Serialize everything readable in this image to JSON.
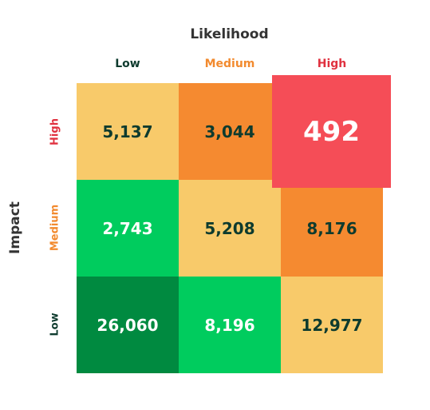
{
  "chart_data": {
    "type": "heatmap",
    "x_title": "Likelihood",
    "y_title": "Impact",
    "x_categories": [
      "Low",
      "Medium",
      "High"
    ],
    "y_categories": [
      "High",
      "Medium",
      "Low"
    ],
    "cells": [
      [
        "5,137",
        "3,044",
        "492"
      ],
      [
        "2,743",
        "5,208",
        "8,176"
      ],
      [
        "26,060",
        "8,196",
        "12,977"
      ]
    ],
    "values": [
      [
        5137,
        3044,
        492
      ],
      [
        2743,
        5208,
        8176
      ],
      [
        26060,
        8196,
        12977
      ]
    ],
    "highlighted_cell": {
      "row": 0,
      "col": 2
    }
  },
  "colors": {
    "low_label": "#0e3b2e",
    "medium_label": "#f28a2e",
    "high_label": "#e0313f",
    "cell_fills": [
      [
        "#f8ca6a",
        "#f58a30",
        "#f54d57"
      ],
      [
        "#00cc5e",
        "#f8ca6a",
        "#f58a30"
      ],
      [
        "#008a40",
        "#00cc5e",
        "#f8ca6a"
      ]
    ],
    "cell_text": [
      [
        "#0e3b2e",
        "#0e3b2e",
        "#ffffff"
      ],
      [
        "#ffffff",
        "#0e3b2e",
        "#0e3b2e"
      ],
      [
        "#ffffff",
        "#ffffff",
        "#0e3b2e"
      ]
    ]
  }
}
